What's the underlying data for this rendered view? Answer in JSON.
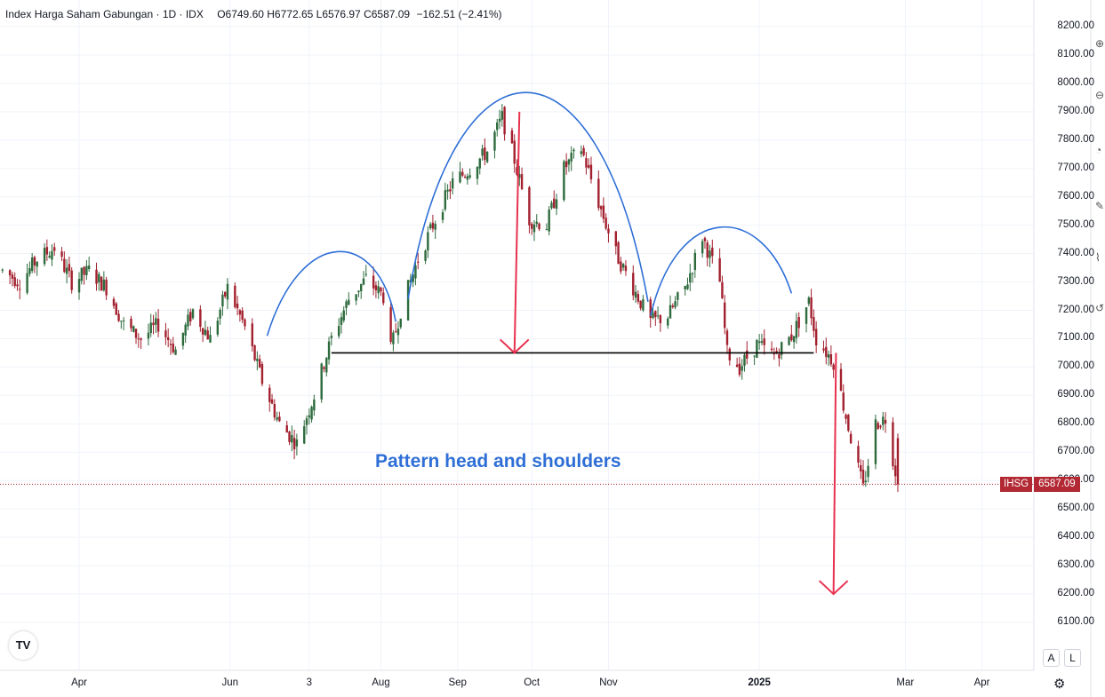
{
  "header": {
    "symbol_name": "Index Harga Saham Gabungan",
    "interval": "1D",
    "exchange": "IDX",
    "sep": "·",
    "open": "O6749.60",
    "high": "H6772.65",
    "low": "L6576.97",
    "close": "C6587.09",
    "change": "−162.51 (−2.41%)"
  },
  "last_price": {
    "symbol": "IHSG",
    "value": "6587.09",
    "color": "#b22833"
  },
  "annotation": {
    "text": "Pattern head and shoulders",
    "color": "#2f6fd6"
  },
  "colors": {
    "up": "#2d6b3d",
    "down": "#a3202e",
    "arrow": "#e8314f",
    "curve": "#2f6fd6",
    "neckline": "#000000"
  },
  "buttons": {
    "auto": "A",
    "log": "L"
  },
  "logo_text": "TV",
  "chart_data": {
    "type": "candlestick",
    "title": "Index Harga Saham Gabungan",
    "ylim": [
      6050,
      8250
    ],
    "y_ticks": [
      "8200.00",
      "8100.00",
      "8000.00",
      "7900.00",
      "7800.00",
      "7700.00",
      "7600.00",
      "7500.00",
      "7400.00",
      "7300.00",
      "7200.00",
      "7100.00",
      "7000.00",
      "6900.00",
      "6800.00",
      "6700.00",
      "6600.00",
      "6500.00",
      "6400.00",
      "6300.00",
      "6200.00",
      "6100.00"
    ],
    "x_ticks": [
      {
        "label": "Apr",
        "date": "2024-04-01",
        "bold": false
      },
      {
        "label": "Jun",
        "date": "2024-06-01",
        "bold": false
      },
      {
        "label": "3",
        "date": "2024-07-03",
        "bold": false
      },
      {
        "label": "Aug",
        "date": "2024-08-01",
        "bold": false
      },
      {
        "label": "Sep",
        "date": "2024-09-01",
        "bold": false
      },
      {
        "label": "Oct",
        "date": "2024-10-01",
        "bold": false
      },
      {
        "label": "Nov",
        "date": "2024-11-01",
        "bold": false
      },
      {
        "label": "2025",
        "date": "2025-01-01",
        "bold": true
      },
      {
        "label": "Mar",
        "date": "2025-03-01",
        "bold": false
      },
      {
        "label": "Apr",
        "date": "2025-04-01",
        "bold": false
      }
    ],
    "x_range": [
      "2024-02-29",
      "2025-04-22"
    ],
    "price_path": [
      [
        "2024-03-01",
        7340
      ],
      [
        "2024-03-08",
        7300
      ],
      [
        "2024-03-15",
        7380
      ],
      [
        "2024-03-22",
        7420
      ],
      [
        "2024-03-29",
        7300
      ],
      [
        "2024-04-05",
        7340
      ],
      [
        "2024-04-12",
        7280
      ],
      [
        "2024-04-19",
        7150
      ],
      [
        "2024-04-26",
        7100
      ],
      [
        "2024-05-03",
        7150
      ],
      [
        "2024-05-10",
        7060
      ],
      [
        "2024-05-17",
        7200
      ],
      [
        "2024-05-24",
        7100
      ],
      [
        "2024-05-31",
        7280
      ],
      [
        "2024-06-07",
        7140
      ],
      [
        "2024-06-14",
        6950
      ],
      [
        "2024-06-21",
        6800
      ],
      [
        "2024-06-28",
        6730
      ],
      [
        "2024-07-05",
        6900
      ],
      [
        "2024-07-12",
        7100
      ],
      [
        "2024-07-19",
        7240
      ],
      [
        "2024-07-26",
        7310
      ],
      [
        "2024-08-02",
        7250
      ],
      [
        "2024-08-05",
        7060
      ],
      [
        "2024-08-09",
        7200
      ],
      [
        "2024-08-16",
        7380
      ],
      [
        "2024-08-23",
        7520
      ],
      [
        "2024-08-30",
        7650
      ],
      [
        "2024-09-06",
        7700
      ],
      [
        "2024-09-13",
        7760
      ],
      [
        "2024-09-19",
        7880
      ],
      [
        "2024-09-24",
        7730
      ],
      [
        "2024-09-30",
        7520
      ],
      [
        "2024-10-07",
        7500
      ],
      [
        "2024-10-14",
        7700
      ],
      [
        "2024-10-21",
        7770
      ],
      [
        "2024-10-28",
        7580
      ],
      [
        "2024-11-04",
        7400
      ],
      [
        "2024-11-11",
        7280
      ],
      [
        "2024-11-18",
        7160
      ],
      [
        "2024-11-25",
        7180
      ],
      [
        "2024-12-02",
        7280
      ],
      [
        "2024-12-09",
        7460
      ],
      [
        "2024-12-16",
        7300
      ],
      [
        "2024-12-19",
        7050
      ],
      [
        "2024-12-24",
        7000
      ],
      [
        "2024-12-31",
        7080
      ],
      [
        "2025-01-07",
        7040
      ],
      [
        "2025-01-14",
        7110
      ],
      [
        "2025-01-21",
        7230
      ],
      [
        "2025-01-24",
        7100
      ],
      [
        "2025-01-31",
        7020
      ],
      [
        "2025-02-07",
        6750
      ],
      [
        "2025-02-12",
        6570
      ],
      [
        "2025-02-17",
        6800
      ],
      [
        "2025-02-21",
        6820
      ],
      [
        "2025-02-26",
        6587.09
      ]
    ],
    "neckline": {
      "from": "2024-07-12",
      "to": "2025-01-23",
      "price": 7050
    },
    "arrows": [
      {
        "from": [
          "2024-09-26",
          7900
        ],
        "to": [
          "2024-09-24",
          7050
        ]
      },
      {
        "from": [
          "2025-02-01",
          7050
        ],
        "to": [
          "2025-01-31",
          6200
        ]
      }
    ]
  }
}
